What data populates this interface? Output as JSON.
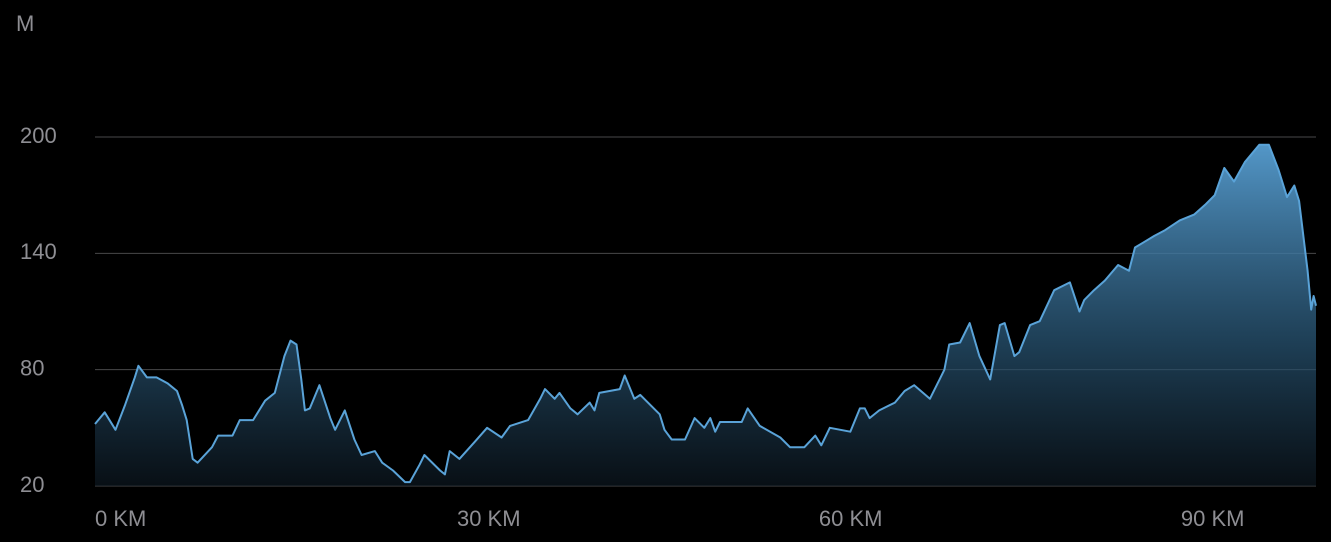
{
  "chart_data": {
    "type": "area",
    "y_axis_label": "M",
    "x": [
      0,
      0.8,
      1.7,
      2.5,
      3.3,
      3.6,
      4.3,
      5.1,
      6.0,
      6.8,
      7.2,
      7.6,
      8.1,
      8.5,
      9.7,
      10.2,
      11.4,
      12.0,
      13.1,
      14.1,
      14.9,
      15.7,
      16.2,
      16.7,
      17.1,
      17.4,
      17.8,
      18.6,
      19.5,
      19.9,
      20.7,
      21.5,
      22.1,
      23.2,
      23.8,
      24.7,
      25.7,
      26.1,
      26.9,
      27.3,
      28.6,
      29.0,
      29.4,
      30.2,
      31.5,
      32.5,
      33.7,
      34.4,
      35.9,
      36.9,
      37.3,
      38.1,
      38.5,
      39.4,
      40.0,
      41.0,
      41.4,
      41.8,
      43.5,
      43.9,
      44.7,
      45.2,
      46.8,
      47.2,
      47.8,
      48.9,
      49.7,
      50.5,
      51.0,
      51.4,
      51.8,
      53.6,
      54.1,
      55.1,
      56.8,
      57.6,
      58.8,
      59.7,
      60.2,
      60.9,
      62.6,
      63.4,
      63.8,
      64.2,
      65.0,
      66.3,
      67.1,
      67.9,
      69.2,
      70.0,
      70.4,
      70.8,
      71.7,
      72.5,
      73.3,
      74.2,
      75.0,
      75.4,
      76.2,
      76.6,
      77.5,
      78.3,
      79.5,
      80.8,
      81.6,
      82.0,
      82.8,
      83.7,
      84.8,
      85.7,
      86.2,
      87.0,
      87.8,
      88.7,
      89.9,
      91.1,
      92.0,
      92.8,
      93.6,
      94.4,
      95.3,
      96.5,
      97.3,
      98.1,
      98.8,
      99.4,
      99.8,
      100.5,
      100.8,
      101.0,
      101.2
    ],
    "series": [
      {
        "color": "#5aa3d8",
        "values": [
          52,
          58,
          49,
          62,
          76,
          82,
          76,
          76,
          73,
          69,
          62,
          54,
          34,
          32,
          40,
          46,
          46,
          54,
          54,
          64,
          68,
          87,
          95,
          93,
          75,
          59,
          60,
          72,
          55,
          49,
          59,
          44,
          36,
          38,
          32,
          28,
          22,
          22,
          31,
          36,
          28,
          26,
          38,
          34,
          43,
          50,
          45,
          51,
          54,
          65,
          70,
          65,
          68,
          60,
          57,
          63,
          59,
          68,
          70,
          77,
          65,
          67,
          57,
          49,
          44,
          44,
          55,
          50,
          55,
          48,
          53,
          53,
          60,
          51,
          45,
          40,
          40,
          46,
          41,
          50,
          48,
          60,
          60,
          55,
          59,
          63,
          69,
          72,
          65,
          75,
          80,
          93,
          94,
          104,
          87,
          75,
          103,
          104,
          87,
          89,
          103,
          105,
          121,
          125,
          110,
          116,
          121,
          126,
          134,
          131,
          143,
          146,
          149,
          152,
          157,
          160,
          165,
          170,
          184,
          177,
          187,
          196,
          196,
          183,
          169,
          175,
          167,
          131,
          111,
          118,
          113
        ]
      }
    ],
    "xlim": [
      0,
      101.2
    ],
    "ylim": [
      20,
      200
    ],
    "xticks": [
      {
        "value": 0,
        "label": "0 KM"
      },
      {
        "value": 30,
        "label": "30 KM"
      },
      {
        "value": 60,
        "label": "60 KM"
      },
      {
        "value": 90,
        "label": "90 KM"
      }
    ],
    "yticks": [
      20,
      80,
      140,
      200
    ],
    "grid": true
  }
}
